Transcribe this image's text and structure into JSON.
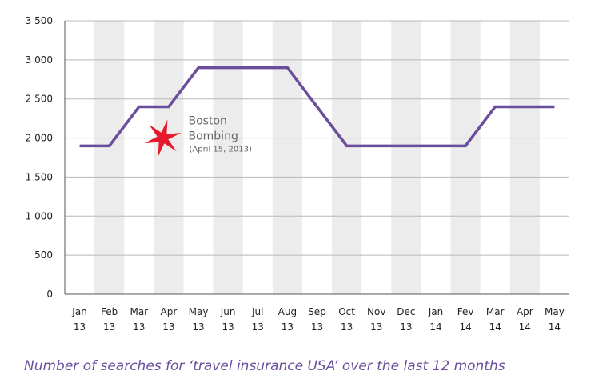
{
  "chart_data": {
    "type": "line",
    "title": "",
    "xlabel": "",
    "ylabel": "",
    "categories": [
      [
        "Jan",
        "13"
      ],
      [
        "Feb",
        "13"
      ],
      [
        "Mar",
        "13"
      ],
      [
        "Apr",
        "13"
      ],
      [
        "May",
        "13"
      ],
      [
        "Jun",
        "13"
      ],
      [
        "Jul",
        "13"
      ],
      [
        "Aug",
        "13"
      ],
      [
        "Sep",
        "13"
      ],
      [
        "Oct",
        "13"
      ],
      [
        "Nov",
        "13"
      ],
      [
        "Dec",
        "13"
      ],
      [
        "Jan",
        "14"
      ],
      [
        "Fev",
        "14"
      ],
      [
        "Mar",
        "14"
      ],
      [
        "Apr",
        "14"
      ],
      [
        "May",
        "14"
      ]
    ],
    "series": [
      {
        "values": [
          1900,
          1900,
          2400,
          2400,
          2900,
          2900,
          2900,
          2900,
          2400,
          1900,
          1900,
          1900,
          1900,
          1900,
          2400,
          2400,
          2400
        ],
        "color": "#6b4e9b"
      }
    ],
    "ylim": [
      0,
      3500
    ],
    "yticks": [
      {
        "value": 0,
        "label": "0"
      },
      {
        "value": 500,
        "label": "500"
      },
      {
        "value": 1000,
        "label": "1 000"
      },
      {
        "value": 1500,
        "label": "1 500"
      },
      {
        "value": 2000,
        "label": "2 000"
      },
      {
        "value": 2500,
        "label": "2 500"
      },
      {
        "value": 3000,
        "label": "3 000"
      },
      {
        "value": 3500,
        "label": "3 500"
      }
    ],
    "grid": "horizontal",
    "alternating_column_bands": true,
    "band_color": "#ececec",
    "annotation": {
      "line1": "Boston",
      "line2": "Bombing",
      "line3": "(April 15, 2013)",
      "icon": "red-star-icon",
      "icon_color": "#e8192c",
      "at_category_index": 2.8,
      "at_value": 2000
    }
  },
  "caption": "Number of searches for ‘travel insurance USA’ over the last 12 months"
}
